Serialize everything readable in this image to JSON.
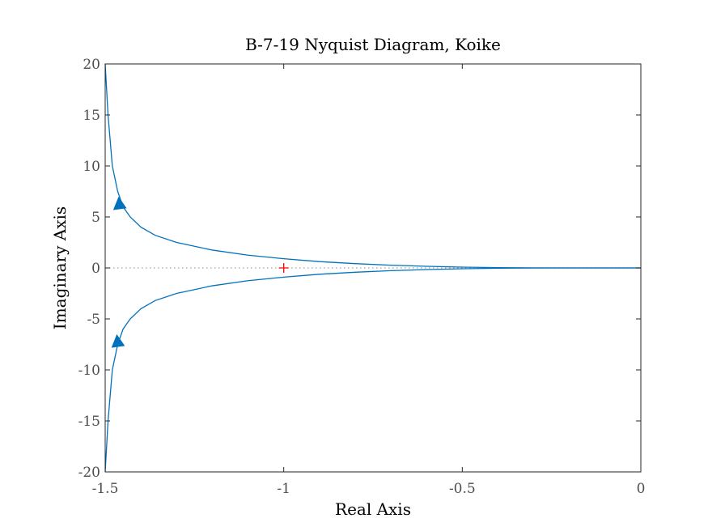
{
  "chart_data": {
    "type": "line",
    "title": "B-7-19 Nyquist Diagram, Koike",
    "xlabel": "Real Axis",
    "ylabel": "Imaginary Axis",
    "xlim": [
      -1.5,
      0
    ],
    "ylim": [
      -20,
      20
    ],
    "xticks": [
      -1.5,
      -1,
      -0.5,
      0
    ],
    "xtick_labels": [
      "-1.5",
      "-1",
      "-0.5",
      "0"
    ],
    "yticks": [
      20,
      15,
      10,
      5,
      0,
      -5,
      -10,
      -15,
      -20
    ],
    "ytick_labels": [
      "20",
      "15",
      "10",
      "5",
      "0",
      "-5",
      "-10",
      "-15",
      "-20"
    ],
    "grid": false,
    "series": [
      {
        "color": "#0072bd",
        "x": [
          -1.5,
          -1.492,
          -1.48,
          -1.465,
          -1.45,
          -1.43,
          -1.4,
          -1.36,
          -1.3,
          -1.2,
          -1.1,
          -1.0,
          -0.9,
          -0.8,
          -0.7,
          -0.6,
          -0.5,
          -0.4,
          -0.3,
          -0.2,
          -0.1,
          0
        ],
        "y": [
          20,
          15,
          10,
          7.5,
          6.0,
          5.0,
          4.0,
          3.2,
          2.5,
          1.75,
          1.25,
          0.9,
          0.62,
          0.42,
          0.27,
          0.16,
          0.08,
          0.03,
          0.01,
          0.0,
          0.0,
          0.0
        ]
      },
      {
        "color": "#0072bd",
        "x": [
          -1.5,
          -1.492,
          -1.48,
          -1.465,
          -1.45,
          -1.43,
          -1.4,
          -1.36,
          -1.3,
          -1.2,
          -1.1,
          -1.0,
          -0.9,
          -0.8,
          -0.7,
          -0.6,
          -0.5,
          -0.4,
          -0.3,
          -0.2,
          -0.1,
          0
        ],
        "y": [
          -20,
          -15,
          -10,
          -7.5,
          -6.0,
          -5.0,
          -4.0,
          -3.2,
          -2.5,
          -1.75,
          -1.25,
          -0.9,
          -0.62,
          -0.42,
          -0.27,
          -0.16,
          -0.08,
          -0.03,
          -0.01,
          0.0,
          0.0,
          0.0
        ]
      }
    ],
    "arrows": [
      {
        "x": -1.46,
        "y": 6.2,
        "direction": "up"
      },
      {
        "x": -1.465,
        "y": -7.3,
        "direction": "up"
      }
    ],
    "critical_point": {
      "x": -1,
      "y": 0,
      "marker": "+",
      "color": "#ff0000"
    },
    "zero_line": {
      "y": 0,
      "style": "dotted",
      "color": "#a0a0a0"
    }
  }
}
